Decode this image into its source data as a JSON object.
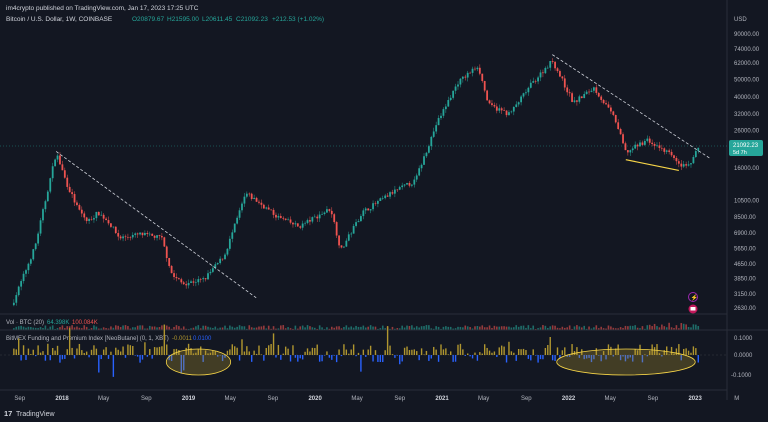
{
  "header": {
    "published": "im4crypto published on TradingView.com, Jan 17, 2023 17:25 UTC",
    "symbol": "Bitcoin / U.S. Dollar, 1W, COINBASE",
    "ohlc_o": "O20879.67",
    "ohlc_h": "H21595.00",
    "ohlc_l": "L20611.45",
    "ohlc_c": "C21092.23",
    "change": "+212.53 (+1.02%)"
  },
  "price_axis": {
    "currency": "USD",
    "last_price": "21092.23",
    "countdown": "5d 7h"
  },
  "volume_label": {
    "name": "Vol · BTC (20)",
    "v1": "64.398K",
    "v2": "100.084K"
  },
  "indicator_label": {
    "name": "BitMEX Funding and Premium Index [NeoButane] (0, 1, XBT)",
    "v1": "-0.0011",
    "v2": "0.0100"
  },
  "indicator_axis": [
    "0.1000",
    "0.0000",
    "-0.1000"
  ],
  "footer": {
    "brand": "TradingView"
  },
  "colors": {
    "background": "#131722",
    "up": "#26a69a",
    "down": "#ef5350",
    "trendline": "#d1d4dc",
    "support": "#f7d548",
    "highlight": "#b0962f",
    "funding_pos": "#b0962f",
    "funding_neg": "#2962ff"
  },
  "chart_data": {
    "type": "candlestick",
    "title": "Bitcoin / U.S. Dollar, 1W, COINBASE",
    "scale": "log",
    "y_ticks": [
      90000,
      74000,
      62000,
      50000,
      40000,
      32000,
      26000,
      16000,
      10500,
      8500,
      6900,
      5650,
      4650,
      3850,
      3150,
      2630
    ],
    "x_ticks": [
      "Sep",
      "2018",
      "May",
      "Sep",
      "2019",
      "May",
      "Sep",
      "2020",
      "May",
      "Sep",
      "2021",
      "May",
      "Sep",
      "2022",
      "May",
      "Sep",
      "2023",
      "M"
    ],
    "price_path": [
      [
        "2017-08",
        2900
      ],
      [
        "2017-10",
        5800
      ],
      [
        "2017-12",
        19500
      ],
      [
        "2018-01",
        13000
      ],
      [
        "2018-02",
        9500
      ],
      [
        "2018-03",
        8000
      ],
      [
        "2018-04",
        9000
      ],
      [
        "2018-05",
        8000
      ],
      [
        "2018-06",
        6500
      ],
      [
        "2018-08",
        6800
      ],
      [
        "2018-10",
        6500
      ],
      [
        "2018-11",
        4000
      ],
      [
        "2018-12",
        3600
      ],
      [
        "2019-02",
        3800
      ],
      [
        "2019-04",
        5200
      ],
      [
        "2019-06",
        11500
      ],
      [
        "2019-07",
        10500
      ],
      [
        "2019-09",
        8500
      ],
      [
        "2019-11",
        7500
      ],
      [
        "2020-02",
        9500
      ],
      [
        "2020-03",
        5500
      ],
      [
        "2020-05",
        9000
      ],
      [
        "2020-08",
        11800
      ],
      [
        "2020-10",
        13500
      ],
      [
        "2020-12",
        28000
      ],
      [
        "2021-02",
        48000
      ],
      [
        "2021-04",
        60000
      ],
      [
        "2021-05",
        36000
      ],
      [
        "2021-07",
        32000
      ],
      [
        "2021-09",
        47000
      ],
      [
        "2021-11",
        64000
      ],
      [
        "2022-01",
        37000
      ],
      [
        "2022-03",
        45000
      ],
      [
        "2022-05",
        30000
      ],
      [
        "2022-06",
        19500
      ],
      [
        "2022-08",
        23000
      ],
      [
        "2022-10",
        19500
      ],
      [
        "2022-11",
        16500
      ],
      [
        "2022-12",
        16800
      ],
      [
        "2023-01",
        21092
      ]
    ],
    "annotations": {
      "trendline_1": [
        [
          "2017-12",
          19800
        ],
        [
          "2019-07",
          3000
        ]
      ],
      "trendline_2": [
        [
          "2021-11",
          69000
        ],
        [
          "2023-02",
          18000
        ]
      ],
      "support_line": [
        [
          "2022-06",
          17800
        ],
        [
          "2022-11",
          15500
        ]
      ]
    },
    "funding_index": {
      "range": [
        -0.15,
        0.15
      ],
      "highlights": [
        [
          "2018-11",
          "2019-04"
        ],
        [
          "2021-12",
          "2022-12"
        ]
      ]
    }
  }
}
